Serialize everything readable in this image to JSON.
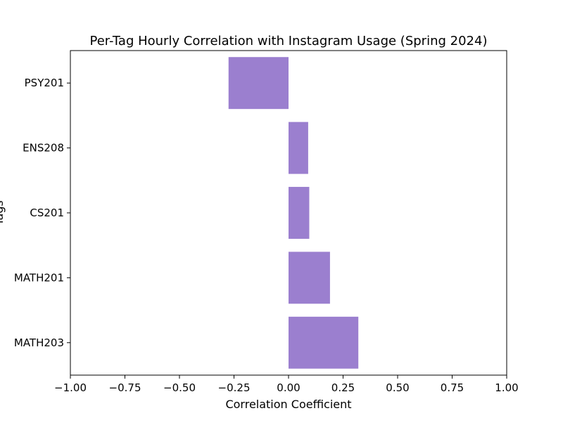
{
  "chart_data": {
    "type": "bar",
    "orientation": "horizontal",
    "title": "Per-Tag Hourly Correlation with Instagram Usage (Spring 2024)",
    "xlabel": "Correlation Coefficient",
    "ylabel": "Tags",
    "xlim": [
      -1.0,
      1.0
    ],
    "xticks": [
      "−1.00",
      "−0.75",
      "−0.50",
      "−0.25",
      "0.00",
      "0.25",
      "0.50",
      "0.75",
      "1.00"
    ],
    "categories": [
      "PSY201",
      "ENS208",
      "CS201",
      "MATH201",
      "MATH203"
    ],
    "values": [
      -0.275,
      0.09,
      0.095,
      0.19,
      0.32
    ],
    "bar_color": "#9b7fcf",
    "grid": false,
    "legend": "none"
  }
}
